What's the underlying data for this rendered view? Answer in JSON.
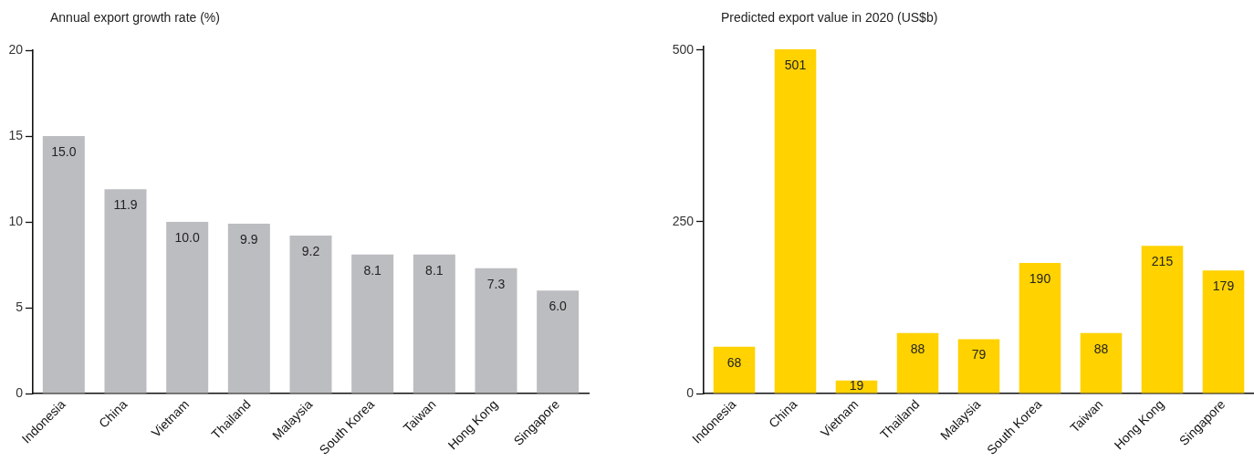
{
  "chart_data": [
    {
      "type": "bar",
      "title": "Annual export growth rate (%)",
      "categories": [
        "Indonesia",
        "China",
        "Vietnam",
        "Thailand",
        "Malaysia",
        "South Korea",
        "Taiwan",
        "Hong Kong",
        "Singapore"
      ],
      "values": [
        15.0,
        11.9,
        10.0,
        9.9,
        9.2,
        8.1,
        8.1,
        7.3,
        6.0
      ],
      "value_labels": [
        "15.0",
        "11.9",
        "10.0",
        "9.9",
        "9.2",
        "8.1",
        "8.1",
        "7.3",
        "6.0"
      ],
      "color": "#bcbdc0",
      "ylim": [
        0,
        20
      ],
      "yticks": [
        0,
        5,
        10,
        15,
        20
      ]
    },
    {
      "type": "bar",
      "title": "Predicted export value in 2020 (US$b)",
      "categories": [
        "Indonesia",
        "China",
        "Vietnam",
        "Thailand",
        "Malaysia",
        "South Korea",
        "Taiwan",
        "Hong Kong",
        "Singapore"
      ],
      "values": [
        68,
        501,
        19,
        88,
        79,
        190,
        88,
        215,
        179
      ],
      "data_labels": true,
      "color": "#ffd200",
      "ylim": [
        0,
        505
      ],
      "yticks": [
        0,
        250,
        500
      ]
    }
  ]
}
